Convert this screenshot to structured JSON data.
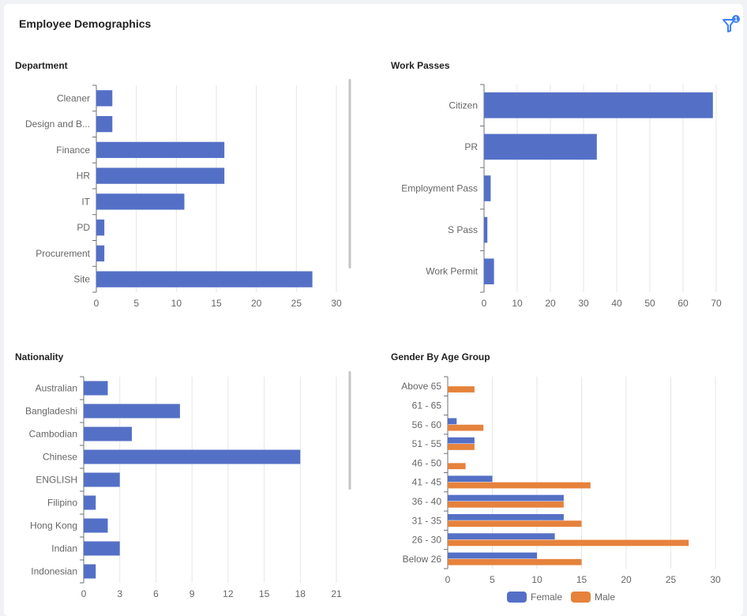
{
  "header": {
    "title": "Employee Demographics",
    "filter_icon": "filter-icon",
    "filter_badge": "1"
  },
  "colors": {
    "female": "#5470c6",
    "male": "#e6823c",
    "bar": "#5470c6",
    "accent": "#3b82f6"
  },
  "chart_data": [
    {
      "id": "department",
      "title": "Department",
      "type": "bar",
      "orientation": "horizontal",
      "categories": [
        "Cleaner",
        "Design and B...",
        "Finance",
        "HR",
        "IT",
        "PD",
        "Procurement",
        "Site"
      ],
      "values": [
        2,
        2,
        16,
        16,
        11,
        1,
        1,
        27
      ],
      "xticks": [
        0,
        5,
        10,
        15,
        20,
        25,
        30
      ],
      "xlim": [
        0,
        30
      ],
      "grid": true,
      "scrollable": true
    },
    {
      "id": "work-passes",
      "title": "Work Passes",
      "type": "bar",
      "orientation": "horizontal",
      "categories": [
        "Citizen",
        "PR",
        "Employment Pass",
        "S Pass",
        "Work Permit"
      ],
      "values": [
        69,
        34,
        2,
        1,
        3
      ],
      "xticks": [
        0,
        10,
        20,
        30,
        40,
        50,
        60,
        70
      ],
      "xlim": [
        0,
        70
      ],
      "grid": true
    },
    {
      "id": "nationality",
      "title": "Nationality",
      "type": "bar",
      "orientation": "horizontal",
      "categories": [
        "Australian",
        "Bangladeshi",
        "Cambodian",
        "Chinese",
        "ENGLISH",
        "Filipino",
        "Hong Kong",
        "Indian",
        "Indonesian"
      ],
      "values": [
        2,
        8,
        4,
        18,
        3,
        1,
        2,
        3,
        1
      ],
      "xticks": [
        0,
        3,
        6,
        9,
        12,
        15,
        18,
        21
      ],
      "xlim": [
        0,
        21
      ],
      "grid": true,
      "scrollable": true
    },
    {
      "id": "gender-age",
      "title": "Gender By Age Group",
      "type": "bar",
      "orientation": "horizontal",
      "categories": [
        "Above 65",
        "61 - 65",
        "56 - 60",
        "51 - 55",
        "46 - 50",
        "41 - 45",
        "36 - 40",
        "31 - 35",
        "26 - 30",
        "Below 26"
      ],
      "series": [
        {
          "name": "Female",
          "values": [
            0,
            0,
            1,
            3,
            0,
            5,
            13,
            13,
            12,
            10
          ]
        },
        {
          "name": "Male",
          "values": [
            3,
            0,
            4,
            3,
            2,
            16,
            13,
            15,
            27,
            15
          ]
        }
      ],
      "xticks": [
        0,
        5,
        10,
        15,
        20,
        25,
        30
      ],
      "xlim": [
        0,
        30
      ],
      "grid": true,
      "legend": "bottom"
    }
  ]
}
